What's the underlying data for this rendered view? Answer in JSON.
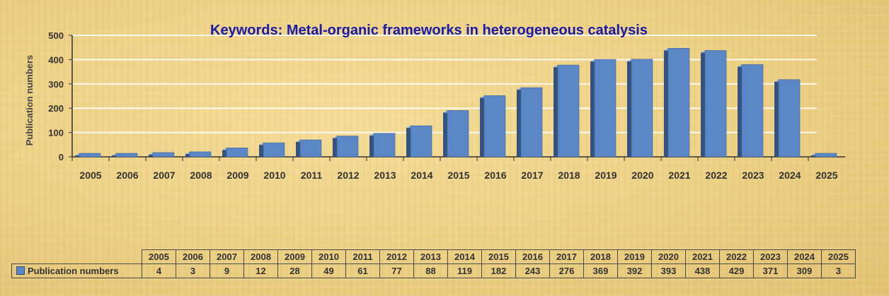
{
  "chart_data": {
    "type": "bar",
    "title": "Keywords: Metal-organic frameworks in heterogeneous catalysis",
    "xlabel": "",
    "ylabel": "Publication numbers",
    "ylim": [
      0,
      500
    ],
    "yticks": [
      0,
      100,
      200,
      300,
      400,
      500
    ],
    "grid": true,
    "categories": [
      "2005",
      "2006",
      "2007",
      "2008",
      "2009",
      "2010",
      "2011",
      "2012",
      "2013",
      "2014",
      "2015",
      "2016",
      "2017",
      "2018",
      "2019",
      "2020",
      "2021",
      "2022",
      "2023",
      "2024",
      "2025"
    ],
    "series": [
      {
        "name": "Publication numbers",
        "values": [
          4,
          3,
          9,
          12,
          28,
          49,
          61,
          77,
          88,
          119,
          182,
          243,
          276,
          369,
          392,
          393,
          438,
          429,
          371,
          309,
          3
        ]
      }
    ],
    "colors": {
      "bar_front": "#5b87c7",
      "bar_side": "#34527d",
      "bar_top": "#8fb0dc",
      "title": "#1a1aa8"
    },
    "data_table": true
  }
}
